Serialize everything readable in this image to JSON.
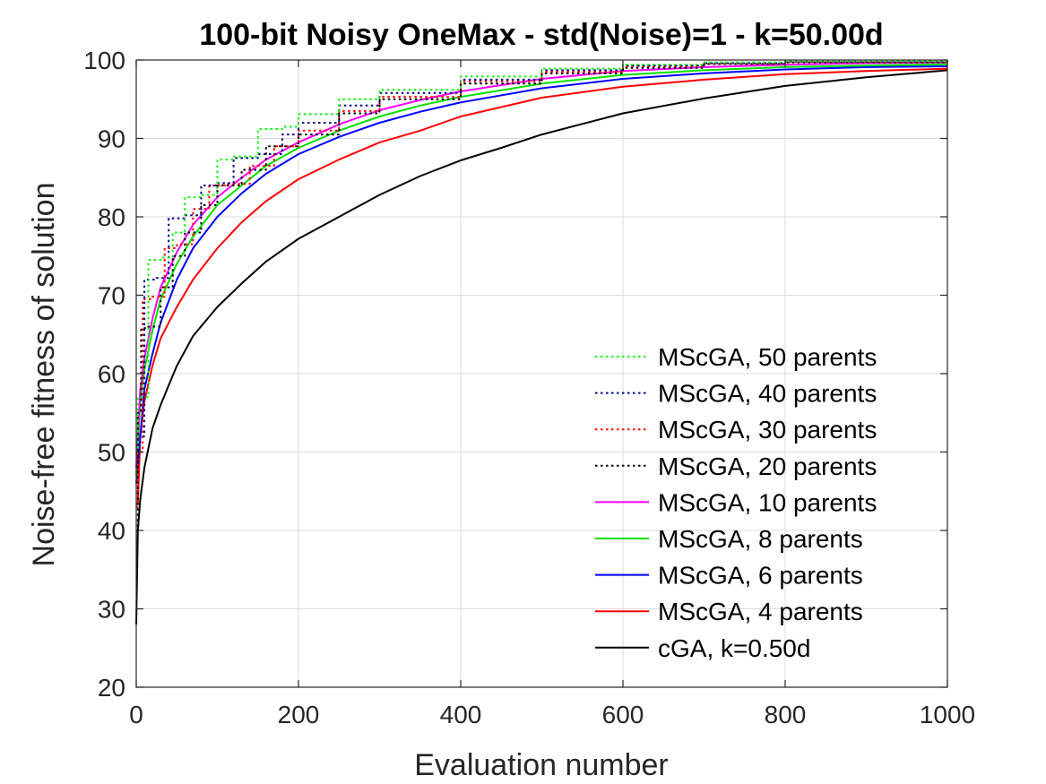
{
  "chart_data": {
    "type": "line",
    "title": "100-bit Noisy OneMax - std(Noise)=1 - k=50.00d",
    "xlabel": "Evaluation number",
    "ylabel": "Noise-free fitness of solution",
    "xlim": [
      0,
      1000
    ],
    "ylim": [
      20,
      100
    ],
    "xticks": [
      0,
      200,
      400,
      600,
      800,
      1000
    ],
    "yticks": [
      20,
      30,
      40,
      50,
      60,
      70,
      80,
      90,
      100
    ],
    "grid": true,
    "legend_position": "lower-right",
    "series": [
      {
        "name": "MScGA, 50 parents",
        "color": "#00ff00",
        "style": "dotted",
        "step": true,
        "x": [
          0,
          2,
          15,
          30,
          45,
          60,
          80,
          100,
          120,
          150,
          180,
          200,
          250,
          300,
          400,
          500,
          600,
          700,
          800,
          1000
        ],
        "y": [
          50,
          57,
          74.5,
          74.8,
          78,
          82.5,
          82.8,
          87.3,
          87.7,
          91.2,
          91.5,
          93.1,
          95,
          96.2,
          97.9,
          98.9,
          99.4,
          99.7,
          99.85,
          99.95
        ]
      },
      {
        "name": "MScGA, 40 parents",
        "color": "#00008b",
        "style": "dotted",
        "step": true,
        "x": [
          0,
          2,
          10,
          25,
          40,
          60,
          80,
          100,
          120,
          150,
          180,
          200,
          250,
          300,
          400,
          500,
          600,
          700,
          800,
          1000
        ],
        "y": [
          48,
          52,
          72,
          72.2,
          79.8,
          80.2,
          84,
          84.3,
          87.5,
          88,
          90.5,
          92,
          94.2,
          95.8,
          97.5,
          98.7,
          99.3,
          99.6,
          99.8,
          99.92
        ]
      },
      {
        "name": "MScGA, 30 parents",
        "color": "#ff0000",
        "style": "dotted",
        "step": true,
        "x": [
          0,
          2,
          8,
          20,
          35,
          50,
          70,
          90,
          110,
          140,
          170,
          200,
          250,
          300,
          400,
          500,
          600,
          700,
          800,
          1000
        ],
        "y": [
          43,
          50,
          69.5,
          69.8,
          76,
          76.5,
          81,
          84,
          84.2,
          86.5,
          89,
          91,
          93.5,
          95.3,
          97.3,
          98.5,
          99.2,
          99.55,
          99.75,
          99.9
        ]
      },
      {
        "name": "MScGA, 20 parents",
        "color": "#000000",
        "style": "dotted",
        "step": true,
        "x": [
          0,
          2,
          6,
          15,
          30,
          45,
          60,
          80,
          100,
          130,
          160,
          200,
          250,
          300,
          400,
          500,
          600,
          700,
          800,
          1000
        ],
        "y": [
          40,
          55,
          65.8,
          66,
          71,
          75,
          78,
          81.5,
          84,
          86,
          89,
          90.5,
          93.2,
          95,
          97,
          98.3,
          99,
          99.5,
          99.7,
          99.88
        ]
      },
      {
        "name": "MScGA, 10 parents",
        "color": "#ff00ff",
        "style": "solid",
        "step": false,
        "x": [
          0,
          5,
          10,
          20,
          30,
          50,
          70,
          100,
          130,
          160,
          200,
          250,
          300,
          350,
          400,
          500,
          600,
          700,
          800,
          900,
          1000
        ],
        "y": [
          48,
          58,
          62,
          67,
          71,
          75.5,
          79,
          82.5,
          85,
          87.3,
          89.5,
          91.8,
          93.6,
          94.9,
          96,
          97.6,
          98.6,
          99.1,
          99.4,
          99.6,
          99.7
        ]
      },
      {
        "name": "MScGA, 8 parents",
        "color": "#00e000",
        "style": "solid",
        "step": false,
        "x": [
          0,
          5,
          10,
          20,
          30,
          50,
          70,
          100,
          130,
          160,
          200,
          250,
          300,
          350,
          400,
          500,
          600,
          700,
          800,
          900,
          1000
        ],
        "y": [
          47,
          56.5,
          60.5,
          65.5,
          69.5,
          74,
          77.5,
          81.5,
          84,
          86.5,
          88.8,
          91,
          92.8,
          94.2,
          95.3,
          97,
          98.1,
          98.7,
          99.1,
          99.3,
          99.45
        ]
      },
      {
        "name": "MScGA, 6 parents",
        "color": "#0000ff",
        "style": "solid",
        "step": false,
        "x": [
          0,
          5,
          10,
          20,
          30,
          50,
          70,
          100,
          130,
          160,
          200,
          250,
          300,
          350,
          400,
          500,
          600,
          700,
          800,
          900,
          1000
        ],
        "y": [
          46,
          52,
          58,
          62.5,
          66.5,
          72,
          76,
          80,
          83,
          85.5,
          88,
          90.2,
          92,
          93.4,
          94.6,
          96.4,
          97.6,
          98.3,
          98.8,
          99.1,
          99.2
        ]
      },
      {
        "name": "MScGA, 4 parents",
        "color": "#ff0000",
        "style": "solid",
        "step": false,
        "x": [
          0,
          2,
          5,
          10,
          20,
          30,
          50,
          70,
          100,
          130,
          160,
          200,
          250,
          300,
          350,
          400,
          500,
          600,
          700,
          800,
          900,
          1000
        ],
        "y": [
          43.3,
          43.5,
          52,
          56.5,
          61,
          64.5,
          68.5,
          72,
          76,
          79.3,
          82,
          84.8,
          87.3,
          89.5,
          91,
          92.8,
          95.2,
          96.6,
          97.5,
          98.2,
          98.6,
          98.9
        ]
      },
      {
        "name": "cGA, k=0.50d",
        "color": "#000000",
        "style": "solid",
        "step": false,
        "x": [
          0,
          2,
          5,
          10,
          20,
          30,
          40,
          50,
          70,
          100,
          130,
          160,
          200,
          250,
          300,
          350,
          400,
          450,
          500,
          600,
          700,
          800,
          900,
          1000
        ],
        "y": [
          28,
          40,
          44,
          48,
          53,
          56,
          58.5,
          61,
          64.8,
          68.5,
          71.5,
          74.3,
          77.2,
          80,
          82.8,
          85.2,
          87.2,
          88.8,
          90.5,
          93.2,
          95.1,
          96.7,
          97.8,
          98.7
        ]
      }
    ]
  }
}
